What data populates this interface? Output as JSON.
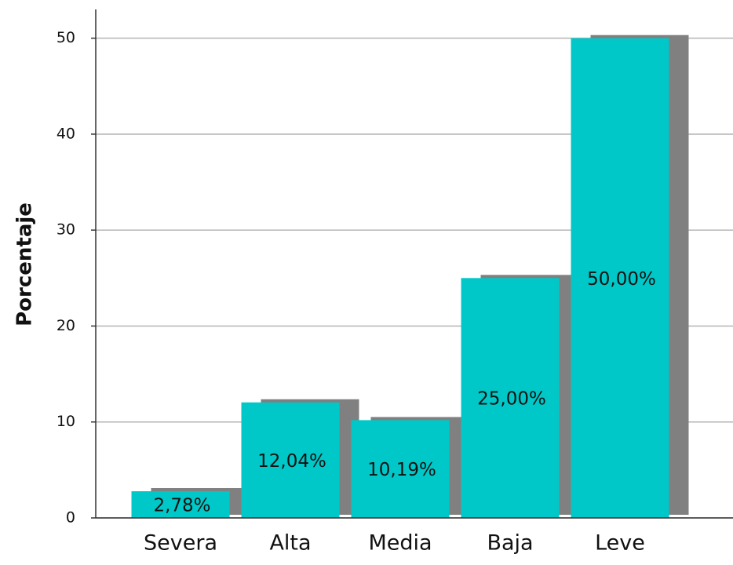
{
  "chart_data": {
    "type": "bar",
    "y_label": "Porcentaje",
    "categories": [
      "Severa",
      "Alta",
      "Media",
      "Baja",
      "Leve"
    ],
    "values": [
      2.78,
      12.04,
      10.19,
      25,
      50
    ],
    "value_labels": [
      "2,78%",
      "12,04%",
      "10,19%",
      "25,00%",
      "50,00%"
    ],
    "color": "#00c8c8",
    "shadow_color": "#808080",
    "ylim": [
      0,
      53
    ],
    "yticks": [
      0,
      10,
      20,
      30,
      40,
      50
    ],
    "grid": true
  }
}
